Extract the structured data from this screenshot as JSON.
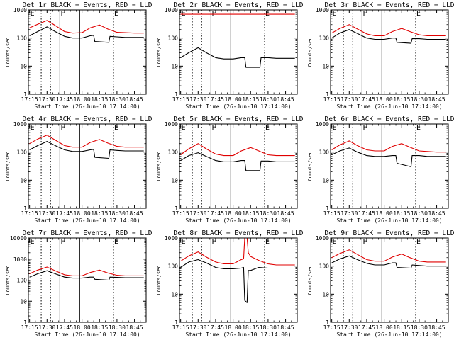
{
  "colors": {
    "events": "#000000",
    "lld": "#e00000",
    "axis": "#000000"
  },
  "chart_data": [
    {
      "type": "line",
      "title": "Det 1r BLACK = Events, RED = LLD",
      "xlabel": "Start Time (26-Jun-10 17:14:00)",
      "ylabel": "Counts/sec",
      "scale": "log",
      "ylim": [
        1,
        1000
      ],
      "yticks": [
        "1",
        "10",
        "100",
        "1000"
      ],
      "xticks": [
        "17:15",
        "17:30",
        "17:45",
        "18:00",
        "18:15",
        "18:30",
        "18:45"
      ],
      "markers": [
        "E",
        "F",
        "E"
      ],
      "series": [
        {
          "role": "lld",
          "x": [
            "17:15",
            "17:22",
            "17:30",
            "17:37",
            "17:45",
            "17:52",
            "18:00",
            "18:07",
            "18:15",
            "18:22",
            "18:30",
            "18:37",
            "18:45",
            "18:53"
          ],
          "values": [
            230,
            310,
            420,
            280,
            170,
            150,
            155,
            230,
            290,
            210,
            160,
            155,
            150,
            150
          ]
        },
        {
          "role": "events",
          "x": [
            "17:15",
            "17:22",
            "17:30",
            "17:37",
            "17:45",
            "17:52",
            "18:00",
            "18:07",
            "18:10",
            "18:11",
            "18:23",
            "18:24",
            "18:30",
            "18:37",
            "18:45",
            "18:53"
          ],
          "values": [
            120,
            170,
            250,
            170,
            115,
            100,
            100,
            120,
            125,
            75,
            70,
            115,
            110,
            105,
            105,
            105
          ]
        }
      ]
    },
    {
      "type": "line",
      "title": "Det 2r BLACK = Events, RED = LLD",
      "xlabel": "Start Time (26-Jun-10 17:14:00)",
      "ylabel": "Counts/sec",
      "scale": "log",
      "ylim": [
        1,
        1000
      ],
      "yticks": [
        "1",
        "10",
        "100",
        "1000"
      ],
      "xticks": [
        "17:15",
        "17:30",
        "17:45",
        "18:00",
        "18:15",
        "18:30",
        "18:45"
      ],
      "markers": [
        "E",
        "F",
        "E"
      ],
      "series": [
        {
          "role": "lld",
          "x": [
            "17:15",
            "17:30",
            "17:45",
            "18:00",
            "18:15",
            "18:30",
            "18:45",
            "18:53"
          ],
          "values": [
            700,
            700,
            700,
            700,
            700,
            700,
            700,
            700
          ]
        },
        {
          "role": "events",
          "x": [
            "17:15",
            "17:22",
            "17:30",
            "17:37",
            "17:45",
            "17:52",
            "18:00",
            "18:07",
            "18:10",
            "18:11",
            "18:23",
            "18:24",
            "18:30",
            "18:37",
            "18:45",
            "18:53"
          ],
          "values": [
            20,
            30,
            45,
            30,
            20,
            18,
            18,
            20,
            20,
            9,
            9,
            20,
            20,
            19,
            19,
            19
          ]
        }
      ]
    },
    {
      "type": "line",
      "title": "Det 3r BLACK = Events, RED = LLD",
      "xlabel": "Start Time (26-Jun-10 17:14:00)",
      "ylabel": "Counts/sec",
      "scale": "log",
      "ylim": [
        1,
        1000
      ],
      "yticks": [
        "1",
        "10",
        "100",
        "1000"
      ],
      "xticks": [
        "17:15",
        "17:30",
        "17:45",
        "18:00",
        "18:15",
        "18:30",
        "18:45"
      ],
      "markers": [
        "E",
        "F",
        "E"
      ],
      "series": [
        {
          "role": "lld",
          "x": [
            "17:15",
            "17:22",
            "17:30",
            "17:37",
            "17:45",
            "17:52",
            "18:00",
            "18:07",
            "18:15",
            "18:22",
            "18:30",
            "18:37",
            "18:45",
            "18:53"
          ],
          "values": [
            150,
            220,
            300,
            210,
            140,
            120,
            120,
            170,
            220,
            170,
            130,
            120,
            120,
            120
          ]
        },
        {
          "role": "events",
          "x": [
            "17:15",
            "17:22",
            "17:30",
            "17:37",
            "17:45",
            "17:52",
            "18:00",
            "18:07",
            "18:10",
            "18:11",
            "18:23",
            "18:24",
            "18:30",
            "18:37",
            "18:45",
            "18:53"
          ],
          "values": [
            100,
            150,
            200,
            145,
            100,
            90,
            90,
            100,
            100,
            70,
            65,
            95,
            95,
            90,
            90,
            90
          ]
        }
      ]
    },
    {
      "type": "line",
      "title": "Det 4r BLACK = Events, RED = LLD",
      "xlabel": "Start Time (26-Jun-10 17:14:00)",
      "ylabel": "Counts/sec",
      "scale": "log",
      "ylim": [
        1,
        1000
      ],
      "yticks": [
        "1",
        "10",
        "100",
        "1000"
      ],
      "xticks": [
        "17:15",
        "17:30",
        "17:45",
        "18:00",
        "18:15",
        "18:30",
        "18:45"
      ],
      "markers": [
        "E",
        "F",
        "E"
      ],
      "series": [
        {
          "role": "lld",
          "x": [
            "17:15",
            "17:22",
            "17:30",
            "17:37",
            "17:45",
            "17:52",
            "18:00",
            "18:07",
            "18:15",
            "18:22",
            "18:30",
            "18:37",
            "18:45",
            "18:53"
          ],
          "values": [
            200,
            290,
            400,
            270,
            170,
            150,
            150,
            220,
            280,
            210,
            160,
            150,
            150,
            150
          ]
        },
        {
          "role": "events",
          "x": [
            "17:15",
            "17:22",
            "17:30",
            "17:37",
            "17:45",
            "17:52",
            "18:00",
            "18:07",
            "18:10",
            "18:11",
            "18:23",
            "18:24",
            "18:30",
            "18:37",
            "18:45",
            "18:53"
          ],
          "values": [
            120,
            170,
            240,
            170,
            120,
            105,
            105,
            120,
            125,
            65,
            60,
            120,
            115,
            110,
            110,
            110
          ]
        }
      ]
    },
    {
      "type": "line",
      "title": "Det 5r BLACK = Events, RED = LLD",
      "xlabel": "Start Time (26-Jun-10 17:14:00)",
      "ylabel": "Counts/sec",
      "scale": "log",
      "ylim": [
        1,
        1000
      ],
      "yticks": [
        "1",
        "10",
        "100",
        "1000"
      ],
      "xticks": [
        "17:15",
        "17:30",
        "17:45",
        "18:00",
        "18:15",
        "18:30",
        "18:45"
      ],
      "markers": [
        "E",
        "F",
        "E"
      ],
      "series": [
        {
          "role": "lld",
          "x": [
            "17:15",
            "17:22",
            "17:30",
            "17:37",
            "17:45",
            "17:52",
            "18:00",
            "18:07",
            "18:15",
            "18:22",
            "18:30",
            "18:37",
            "18:45",
            "18:53"
          ],
          "values": [
            80,
            130,
            200,
            130,
            85,
            75,
            75,
            110,
            145,
            110,
            80,
            75,
            75,
            75
          ]
        },
        {
          "role": "events",
          "x": [
            "17:15",
            "17:22",
            "17:30",
            "17:37",
            "17:45",
            "17:52",
            "18:00",
            "18:07",
            "18:10",
            "18:11",
            "18:23",
            "18:24",
            "18:30",
            "18:37",
            "18:45",
            "18:53"
          ],
          "values": [
            50,
            75,
            95,
            70,
            50,
            45,
            45,
            50,
            50,
            22,
            22,
            48,
            48,
            45,
            45,
            45
          ]
        }
      ]
    },
    {
      "type": "line",
      "title": "Det 6r BLACK = Events, RED = LLD",
      "xlabel": "Start Time (26-Jun-10 17:14:00)",
      "ylabel": "Counts/sec",
      "scale": "log",
      "ylim": [
        1,
        1000
      ],
      "yticks": [
        "1",
        "10",
        "100",
        "1000"
      ],
      "xticks": [
        "17:15",
        "17:30",
        "17:45",
        "18:00",
        "18:15",
        "18:30",
        "18:45"
      ],
      "markers": [
        "E",
        "F",
        "E"
      ],
      "series": [
        {
          "role": "lld",
          "x": [
            "17:15",
            "17:22",
            "17:30",
            "17:37",
            "17:45",
            "17:52",
            "18:00",
            "18:07",
            "18:15",
            "18:22",
            "18:30",
            "18:37",
            "18:45",
            "18:53"
          ],
          "values": [
            120,
            180,
            250,
            170,
            120,
            110,
            110,
            160,
            200,
            150,
            110,
            105,
            100,
            100
          ]
        },
        {
          "role": "events",
          "x": [
            "17:15",
            "17:22",
            "17:30",
            "17:37",
            "17:45",
            "17:52",
            "18:00",
            "18:07",
            "18:10",
            "18:11",
            "18:23",
            "18:24",
            "18:30",
            "18:37",
            "18:45",
            "18:53"
          ],
          "values": [
            80,
            110,
            140,
            100,
            75,
            70,
            70,
            75,
            75,
            40,
            30,
            75,
            75,
            70,
            70,
            70
          ]
        }
      ]
    },
    {
      "type": "line",
      "title": "Det 7r BLACK = Events, RED = LLD",
      "xlabel": "Start Time (26-Jun-10 17:14:00)",
      "ylabel": "Counts/sec",
      "scale": "log",
      "ylim": [
        1,
        10000
      ],
      "yticks": [
        "1",
        "10",
        "100",
        "1000",
        "10000"
      ],
      "xticks": [
        "17:15",
        "17:30",
        "17:45",
        "18:00",
        "18:15",
        "18:30",
        "18:45"
      ],
      "markers": [
        "E",
        "F",
        "E"
      ],
      "series": [
        {
          "role": "lld",
          "x": [
            "17:15",
            "17:22",
            "17:30",
            "17:37",
            "17:45",
            "17:52",
            "18:00",
            "18:07",
            "18:15",
            "18:22",
            "18:30",
            "18:37",
            "18:45",
            "18:53"
          ],
          "values": [
            200,
            300,
            420,
            280,
            180,
            160,
            160,
            230,
            300,
            220,
            170,
            160,
            160,
            160
          ]
        },
        {
          "role": "events",
          "x": [
            "17:15",
            "17:22",
            "17:30",
            "17:37",
            "17:45",
            "17:52",
            "18:00",
            "18:07",
            "18:10",
            "18:11",
            "18:23",
            "18:24",
            "18:30",
            "18:37",
            "18:45",
            "18:53"
          ],
          "values": [
            140,
            200,
            280,
            200,
            140,
            125,
            125,
            140,
            140,
            110,
            100,
            140,
            135,
            130,
            130,
            130
          ]
        }
      ]
    },
    {
      "type": "line",
      "title": "Det 8r BLACK = Events, RED = LLD",
      "xlabel": "Start Time (26-Jun-10 17:14:00)",
      "ylabel": "Counts/sec",
      "scale": "log",
      "ylim": [
        1,
        1000
      ],
      "yticks": [
        "1",
        "10",
        "100",
        "1000"
      ],
      "xticks": [
        "17:15",
        "17:30",
        "17:45",
        "18:00",
        "18:15",
        "18:30",
        "18:45"
      ],
      "markers": [
        "E",
        "F",
        "E"
      ],
      "series": [
        {
          "role": "lld",
          "x": [
            "17:15",
            "17:22",
            "17:30",
            "17:37",
            "17:45",
            "17:52",
            "18:00",
            "18:07",
            "18:09",
            "18:10",
            "18:12",
            "18:13",
            "18:15",
            "18:22",
            "18:30",
            "18:37",
            "18:45",
            "18:53"
          ],
          "values": [
            150,
            230,
            320,
            210,
            140,
            120,
            120,
            170,
            180,
            1000,
            1000,
            300,
            220,
            160,
            120,
            110,
            110,
            110
          ]
        },
        {
          "role": "events",
          "x": [
            "17:15",
            "17:22",
            "17:30",
            "17:37",
            "17:45",
            "17:52",
            "18:00",
            "18:07",
            "18:09",
            "18:10",
            "18:12",
            "18:13",
            "18:15",
            "18:22",
            "18:30",
            "18:37",
            "18:45",
            "18:53"
          ],
          "values": [
            90,
            140,
            170,
            130,
            90,
            80,
            80,
            85,
            90,
            6,
            5,
            70,
            70,
            90,
            85,
            85,
            85,
            85
          ]
        }
      ]
    },
    {
      "type": "line",
      "title": "Det 9r BLACK = Events, RED = LLD",
      "xlabel": "Start Time (26-Jun-10 17:14:00)",
      "ylabel": "Counts/sec",
      "scale": "log",
      "ylim": [
        1,
        1000
      ],
      "yticks": [
        "1",
        "10",
        "100",
        "1000"
      ],
      "xticks": [
        "17:15",
        "17:30",
        "17:45",
        "18:00",
        "18:15",
        "18:30",
        "18:45"
      ],
      "markers": [
        "E",
        "F",
        "E"
      ],
      "series": [
        {
          "role": "lld",
          "x": [
            "17:15",
            "17:22",
            "17:30",
            "17:37",
            "17:45",
            "17:52",
            "18:00",
            "18:07",
            "18:15",
            "18:22",
            "18:30",
            "18:37",
            "18:45",
            "18:53"
          ],
          "values": [
            200,
            280,
            380,
            260,
            170,
            150,
            150,
            210,
            270,
            200,
            150,
            140,
            140,
            140
          ]
        },
        {
          "role": "events",
          "x": [
            "17:15",
            "17:22",
            "17:30",
            "17:37",
            "17:45",
            "17:52",
            "18:00",
            "18:07",
            "18:10",
            "18:11",
            "18:23",
            "18:24",
            "18:30",
            "18:37",
            "18:45",
            "18:53"
          ],
          "values": [
            130,
            180,
            230,
            170,
            125,
            110,
            110,
            130,
            130,
            90,
            85,
            110,
            105,
            100,
            100,
            100
          ]
        }
      ]
    }
  ]
}
